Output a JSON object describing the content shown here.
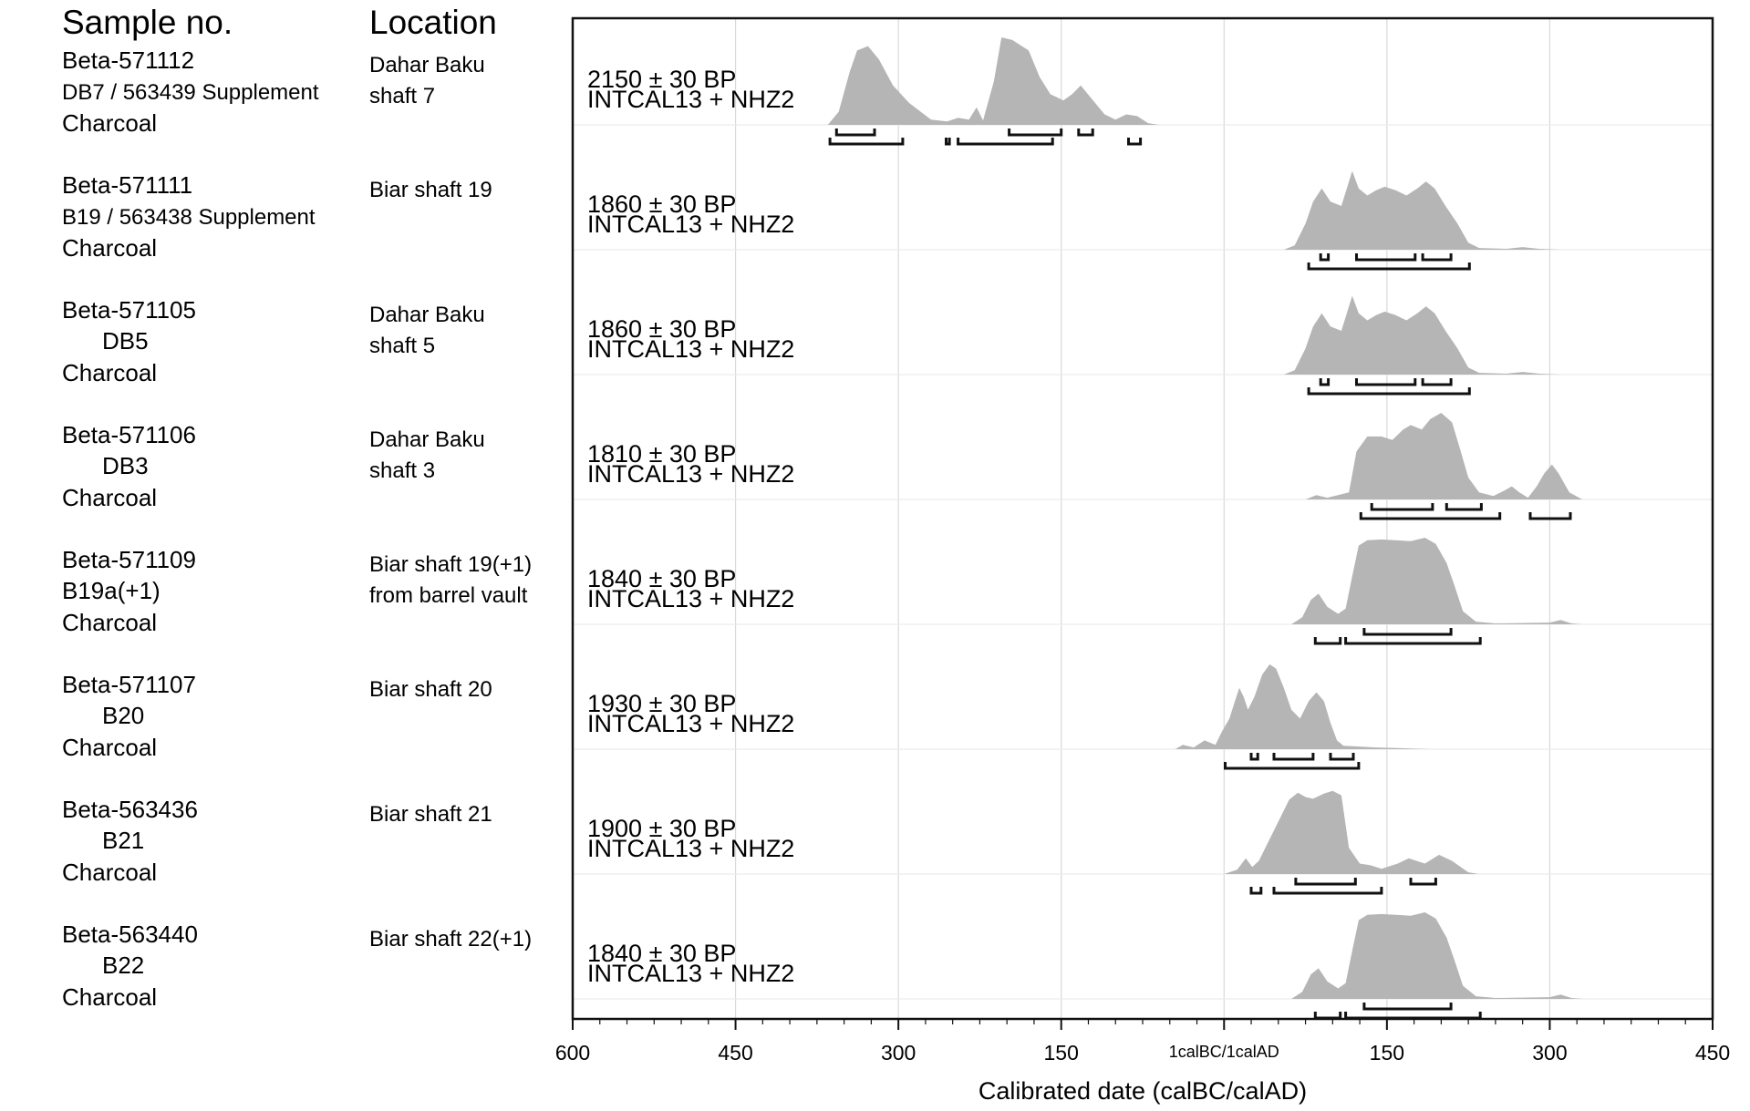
{
  "headers": {
    "sample": "Sample no.",
    "location": "Location"
  },
  "chart_data": {
    "type": "density",
    "xlabel": "Calibrated date (calBC/calAD)",
    "xlim": [
      -600,
      450
    ],
    "x_ticks": [
      {
        "value": -600,
        "label": "600"
      },
      {
        "value": -450,
        "label": "450"
      },
      {
        "value": -300,
        "label": "300"
      },
      {
        "value": -150,
        "label": "150"
      },
      {
        "value": 0,
        "label": "1calBC/1calAD"
      },
      {
        "value": 150,
        "label": "150"
      },
      {
        "value": 300,
        "label": "300"
      },
      {
        "value": 450,
        "label": "450"
      }
    ],
    "grid": true,
    "samples": [
      {
        "id": "Beta-571112",
        "sub": "DB7 / 563439 Supplement",
        "material": "Charcoal",
        "location": [
          "Dahar Baku",
          "shaft 7"
        ],
        "date_bp": "2150 ± 30 BP",
        "curve": "INTCAL13 + NHZ2",
        "density": [
          [
            -365,
            0
          ],
          [
            -355,
            0.15
          ],
          [
            -345,
            0.6
          ],
          [
            -338,
            0.85
          ],
          [
            -328,
            0.9
          ],
          [
            -318,
            0.75
          ],
          [
            -305,
            0.45
          ],
          [
            -290,
            0.25
          ],
          [
            -270,
            0.06
          ],
          [
            -255,
            0.04
          ],
          [
            -245,
            0.08
          ],
          [
            -235,
            0.06
          ],
          [
            -228,
            0.2
          ],
          [
            -222,
            0.05
          ],
          [
            -212,
            0.5
          ],
          [
            -205,
            1.0
          ],
          [
            -195,
            0.97
          ],
          [
            -180,
            0.85
          ],
          [
            -170,
            0.55
          ],
          [
            -160,
            0.35
          ],
          [
            -148,
            0.28
          ],
          [
            -140,
            0.35
          ],
          [
            -132,
            0.45
          ],
          [
            -122,
            0.3
          ],
          [
            -110,
            0.12
          ],
          [
            -100,
            0.06
          ],
          [
            -90,
            0.12
          ],
          [
            -80,
            0.1
          ],
          [
            -70,
            0.02
          ],
          [
            -60,
            0
          ]
        ],
        "range_top": [
          [
            -357,
            -322
          ],
          [
            -198,
            -150
          ],
          [
            -134,
            -121
          ]
        ],
        "range_bot": [
          [
            -363,
            -296
          ],
          [
            -256,
            -253
          ],
          [
            -245,
            -158
          ],
          [
            -88,
            -77
          ]
        ]
      },
      {
        "id": "Beta-571111",
        "sub": "B19 / 563438 Supplement",
        "material": "Charcoal",
        "location": [
          "Biar shaft 19"
        ],
        "date_bp": "1860 ± 30 BP",
        "curve": "INTCAL13 + NHZ2",
        "density": [
          [
            55,
            0
          ],
          [
            65,
            0.05
          ],
          [
            75,
            0.3
          ],
          [
            82,
            0.55
          ],
          [
            90,
            0.7
          ],
          [
            98,
            0.55
          ],
          [
            108,
            0.5
          ],
          [
            118,
            0.9
          ],
          [
            124,
            0.7
          ],
          [
            132,
            0.62
          ],
          [
            140,
            0.68
          ],
          [
            148,
            0.72
          ],
          [
            158,
            0.68
          ],
          [
            168,
            0.62
          ],
          [
            178,
            0.7
          ],
          [
            186,
            0.78
          ],
          [
            194,
            0.7
          ],
          [
            204,
            0.5
          ],
          [
            215,
            0.3
          ],
          [
            225,
            0.08
          ],
          [
            235,
            0.02
          ],
          [
            260,
            0.01
          ],
          [
            275,
            0.03
          ],
          [
            290,
            0.01
          ],
          [
            310,
            0
          ]
        ],
        "range_top": [
          [
            89,
            96
          ],
          [
            122,
            176
          ],
          [
            183,
            209
          ]
        ],
        "range_bot": [
          [
            78,
            226
          ]
        ]
      },
      {
        "id": "Beta-571105",
        "sub": "DB5",
        "material": "Charcoal",
        "location": [
          "Dahar Baku",
          "shaft 5"
        ],
        "date_bp": "1860 ± 30 BP",
        "curve": "INTCAL13 + NHZ2",
        "density": [
          [
            55,
            0
          ],
          [
            65,
            0.05
          ],
          [
            75,
            0.3
          ],
          [
            82,
            0.55
          ],
          [
            90,
            0.7
          ],
          [
            98,
            0.55
          ],
          [
            108,
            0.5
          ],
          [
            118,
            0.9
          ],
          [
            124,
            0.7
          ],
          [
            132,
            0.62
          ],
          [
            140,
            0.68
          ],
          [
            148,
            0.72
          ],
          [
            158,
            0.68
          ],
          [
            168,
            0.62
          ],
          [
            178,
            0.7
          ],
          [
            186,
            0.78
          ],
          [
            194,
            0.7
          ],
          [
            204,
            0.5
          ],
          [
            215,
            0.3
          ],
          [
            225,
            0.08
          ],
          [
            235,
            0.02
          ],
          [
            260,
            0.01
          ],
          [
            275,
            0.03
          ],
          [
            290,
            0.01
          ],
          [
            310,
            0
          ]
        ],
        "range_top": [
          [
            89,
            96
          ],
          [
            122,
            176
          ],
          [
            183,
            209
          ]
        ],
        "range_bot": [
          [
            78,
            226
          ]
        ]
      },
      {
        "id": "Beta-571106",
        "sub": "DB3",
        "material": "Charcoal",
        "location": [
          "Dahar Baku",
          "shaft 3"
        ],
        "date_bp": "1810 ± 30 BP",
        "curve": "INTCAL13 + NHZ2",
        "density": [
          [
            75,
            0
          ],
          [
            85,
            0.05
          ],
          [
            95,
            0.02
          ],
          [
            115,
            0.08
          ],
          [
            122,
            0.55
          ],
          [
            132,
            0.72
          ],
          [
            145,
            0.72
          ],
          [
            155,
            0.68
          ],
          [
            165,
            0.8
          ],
          [
            172,
            0.85
          ],
          [
            182,
            0.8
          ],
          [
            190,
            0.92
          ],
          [
            200,
            0.99
          ],
          [
            210,
            0.88
          ],
          [
            218,
            0.55
          ],
          [
            225,
            0.25
          ],
          [
            235,
            0.08
          ],
          [
            248,
            0.04
          ],
          [
            258,
            0.1
          ],
          [
            265,
            0.15
          ],
          [
            272,
            0.08
          ],
          [
            280,
            0.02
          ],
          [
            288,
            0.15
          ],
          [
            295,
            0.3
          ],
          [
            302,
            0.4
          ],
          [
            308,
            0.3
          ],
          [
            318,
            0.08
          ],
          [
            330,
            0
          ]
        ],
        "range_top": [
          [
            136,
            192
          ],
          [
            205,
            237
          ]
        ],
        "range_bot": [
          [
            126,
            254
          ],
          [
            282,
            319
          ]
        ]
      },
      {
        "id": "Beta-571109",
        "sub": "B19a(+1)",
        "material": "Charcoal",
        "location": [
          "Biar shaft 19(+1)",
          "from barrel vault"
        ],
        "date_bp": "1840 ± 30 BP",
        "curve": "INTCAL13 + NHZ2",
        "density": [
          [
            62,
            0
          ],
          [
            72,
            0.08
          ],
          [
            80,
            0.28
          ],
          [
            87,
            0.35
          ],
          [
            95,
            0.2
          ],
          [
            105,
            0.12
          ],
          [
            112,
            0.18
          ],
          [
            118,
            0.55
          ],
          [
            124,
            0.9
          ],
          [
            132,
            0.96
          ],
          [
            145,
            0.97
          ],
          [
            158,
            0.96
          ],
          [
            172,
            0.95
          ],
          [
            185,
            0.99
          ],
          [
            195,
            0.92
          ],
          [
            205,
            0.7
          ],
          [
            212,
            0.45
          ],
          [
            220,
            0.15
          ],
          [
            232,
            0.03
          ],
          [
            250,
            0.01
          ],
          [
            300,
            0.02
          ],
          [
            310,
            0.05
          ],
          [
            320,
            0.01
          ],
          [
            330,
            0
          ]
        ],
        "range_top": [
          [
            129,
            209
          ]
        ],
        "range_bot": [
          [
            84,
            107
          ],
          [
            112,
            236
          ]
        ]
      },
      {
        "id": "Beta-571107",
        "sub": "B20",
        "material": "Charcoal",
        "location": [
          "Biar shaft 20"
        ],
        "date_bp": "1930 ± 30 BP",
        "curve": "INTCAL13 + NHZ2",
        "density": [
          [
            -45,
            0
          ],
          [
            -38,
            0.05
          ],
          [
            -28,
            0.02
          ],
          [
            -18,
            0.1
          ],
          [
            -8,
            0.05
          ],
          [
            -2,
            0.2
          ],
          [
            5,
            0.35
          ],
          [
            10,
            0.55
          ],
          [
            14,
            0.7
          ],
          [
            18,
            0.6
          ],
          [
            22,
            0.45
          ],
          [
            28,
            0.6
          ],
          [
            35,
            0.85
          ],
          [
            42,
            0.97
          ],
          [
            48,
            0.92
          ],
          [
            55,
            0.7
          ],
          [
            62,
            0.45
          ],
          [
            70,
            0.35
          ],
          [
            78,
            0.55
          ],
          [
            85,
            0.65
          ],
          [
            92,
            0.55
          ],
          [
            98,
            0.3
          ],
          [
            104,
            0.1
          ],
          [
            110,
            0.04
          ],
          [
            140,
            0.02
          ],
          [
            165,
            0.01
          ],
          [
            190,
            0
          ]
        ],
        "range_top": [
          [
            25,
            31
          ],
          [
            46,
            82
          ],
          [
            98,
            119
          ]
        ],
        "range_bot": [
          [
            1,
            124
          ]
        ]
      },
      {
        "id": "Beta-563436",
        "sub": "B21",
        "material": "Charcoal",
        "location": [
          "Biar shaft 21"
        ],
        "date_bp": "1900 ± 30 BP",
        "curve": "INTCAL13 + NHZ2",
        "density": [
          [
            0,
            0
          ],
          [
            12,
            0.05
          ],
          [
            20,
            0.18
          ],
          [
            26,
            0.08
          ],
          [
            32,
            0.15
          ],
          [
            42,
            0.4
          ],
          [
            52,
            0.65
          ],
          [
            60,
            0.85
          ],
          [
            68,
            0.93
          ],
          [
            75,
            0.88
          ],
          [
            82,
            0.86
          ],
          [
            92,
            0.92
          ],
          [
            100,
            0.95
          ],
          [
            108,
            0.9
          ],
          [
            115,
            0.3
          ],
          [
            125,
            0.12
          ],
          [
            135,
            0.1
          ],
          [
            145,
            0.06
          ],
          [
            160,
            0.12
          ],
          [
            170,
            0.18
          ],
          [
            185,
            0.12
          ],
          [
            198,
            0.22
          ],
          [
            210,
            0.15
          ],
          [
            225,
            0.02
          ],
          [
            235,
            0
          ]
        ],
        "range_top": [
          [
            66,
            121
          ],
          [
            172,
            195
          ]
        ],
        "range_bot": [
          [
            25,
            34
          ],
          [
            46,
            145
          ]
        ]
      },
      {
        "id": "Beta-563440",
        "sub": "B22",
        "material": "Charcoal",
        "location": [
          "Biar shaft 22(+1)"
        ],
        "date_bp": "1840 ± 30 BP",
        "curve": "INTCAL13 + NHZ2",
        "density": [
          [
            62,
            0
          ],
          [
            72,
            0.08
          ],
          [
            80,
            0.28
          ],
          [
            87,
            0.35
          ],
          [
            95,
            0.2
          ],
          [
            105,
            0.12
          ],
          [
            112,
            0.18
          ],
          [
            118,
            0.55
          ],
          [
            124,
            0.9
          ],
          [
            132,
            0.96
          ],
          [
            145,
            0.97
          ],
          [
            158,
            0.96
          ],
          [
            172,
            0.95
          ],
          [
            185,
            0.99
          ],
          [
            195,
            0.92
          ],
          [
            205,
            0.7
          ],
          [
            212,
            0.45
          ],
          [
            220,
            0.15
          ],
          [
            232,
            0.03
          ],
          [
            250,
            0.01
          ],
          [
            300,
            0.02
          ],
          [
            310,
            0.05
          ],
          [
            320,
            0.01
          ],
          [
            330,
            0
          ]
        ],
        "range_top": [
          [
            129,
            209
          ]
        ],
        "range_bot": [
          [
            84,
            107
          ],
          [
            112,
            236
          ]
        ]
      }
    ]
  },
  "colors": {
    "fill": "#b5b5b5",
    "grid": "#d9d9d9",
    "axis": "#111111",
    "text": "#1a1a1a"
  }
}
